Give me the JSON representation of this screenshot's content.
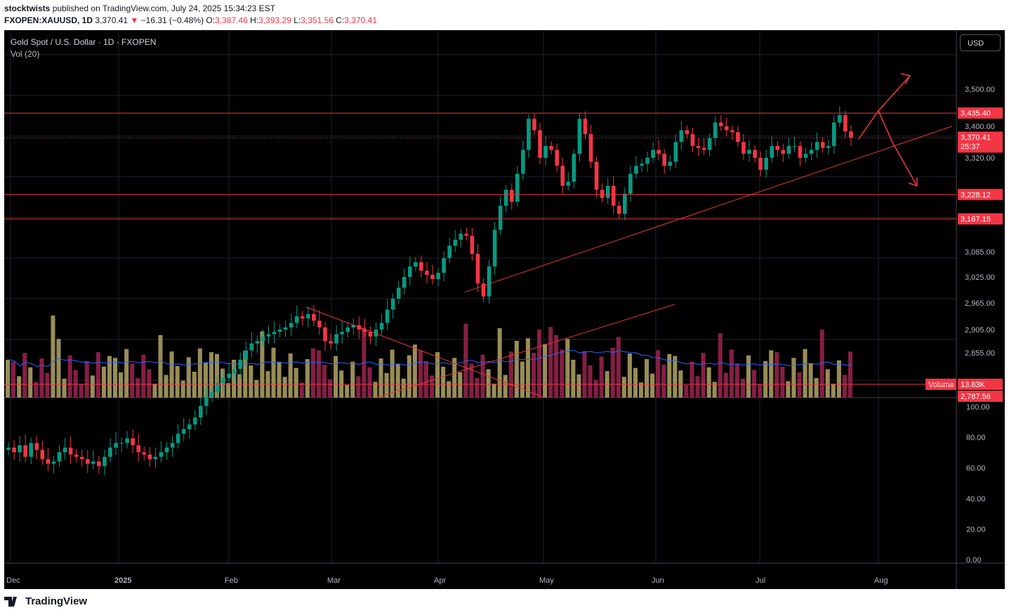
{
  "header": {
    "author": "stocktwists",
    "published": "published on TradingView.com, July 24, 2025 15:34:23 EST",
    "symbol_line": "FXOPEN:XAUUSD, 1D",
    "price": "3,370.41",
    "change": "−16.31 (−0.48%)",
    "o_label": "O:",
    "o_val": "3,387.46",
    "h_label": "H:",
    "h_val": "3,393.29",
    "l_label": "L:",
    "l_val": "3,351.56",
    "c_label": "C:",
    "c_val": "3,370.41"
  },
  "legend": {
    "title": "Gold Spot / U.S. Dollar · 1D · FXOPEN",
    "vol": "Vol (20)"
  },
  "currency_button": "USD",
  "brand": "TradingView",
  "colors": {
    "up": "#26a69a",
    "down": "#ef5350",
    "bull_bar": "#089981",
    "bear_bar": "#f23645",
    "level": "#e53935",
    "trend": "#e53935",
    "vol_up": "#a0955c",
    "vol_down": "#8b2148",
    "vol_ma": "#2962ff",
    "marker_orange": "#ff9800",
    "marker_teal": "#26a69a"
  },
  "chart_data": {
    "type": "candlestick",
    "title": "Gold Spot / U.S. Dollar · 1D · FXOPEN",
    "x_labels": [
      "Dec",
      "2025",
      "Feb",
      "Mar",
      "Apr",
      "May",
      "Jun",
      "Jul",
      "Aug"
    ],
    "y_ticks": [
      "3,500.00",
      "3,400.00",
      "3,320.00",
      "3,085.00",
      "3,025.00",
      "2,965.00",
      "2,905.00",
      "2,855.00"
    ],
    "y_range": [
      2780,
      3560
    ],
    "levels": [
      {
        "label": "3,435.40",
        "value": 3435.4
      },
      {
        "label": "3,228.12",
        "value": 3228.12
      },
      {
        "label": "3,167.15",
        "value": 3167.15
      }
    ],
    "last_price": {
      "label": "3,370.41",
      "countdown": "25:37",
      "value": 3370.41
    },
    "volume_tag": {
      "label": "Volume",
      "value": "13.83K"
    },
    "volume_price_tag": "2,787.56",
    "indicator_ticks": [
      "100.00",
      "80.00",
      "60.00",
      "40.00",
      "20.00",
      "0.00"
    ],
    "candles_close": [
      2650,
      2640,
      2655,
      2630,
      2660,
      2645,
      2625,
      2615,
      2620,
      2640,
      2650,
      2635,
      2630,
      2625,
      2615,
      2620,
      2610,
      2630,
      2650,
      2660,
      2660,
      2670,
      2655,
      2640,
      2635,
      2625,
      2630,
      2640,
      2650,
      2660,
      2680,
      2690,
      2700,
      2715,
      2740,
      2760,
      2770,
      2790,
      2800,
      2810,
      2820,
      2840,
      2860,
      2875,
      2880,
      2890,
      2895,
      2900,
      2905,
      2910,
      2920,
      2935,
      2930,
      2940,
      2925,
      2910,
      2880,
      2875,
      2895,
      2900,
      2910,
      2915,
      2905,
      2900,
      2890,
      2905,
      2920,
      2950,
      2975,
      3000,
      3025,
      3050,
      3060,
      3040,
      3030,
      3020,
      3035,
      3070,
      3100,
      3115,
      3130,
      3125,
      3080,
      3010,
      2980,
      3050,
      3140,
      3200,
      3240,
      3210,
      3280,
      3340,
      3420,
      3390,
      3320,
      3350,
      3340,
      3300,
      3250,
      3260,
      3330,
      3420,
      3380,
      3310,
      3240,
      3220,
      3250,
      3200,
      3180,
      3230,
      3280,
      3300,
      3305,
      3320,
      3340,
      3330,
      3300,
      3310,
      3360,
      3390,
      3380,
      3350,
      3345,
      3340,
      3370,
      3410,
      3400,
      3390,
      3385,
      3360,
      3330,
      3340,
      3320,
      3290,
      3320,
      3350,
      3340,
      3330,
      3350,
      3350,
      3320,
      3330,
      3340,
      3360,
      3345,
      3350,
      3410,
      3430,
      3387,
      3370.41
    ],
    "volume_ma": "Vol (20) moving average"
  }
}
